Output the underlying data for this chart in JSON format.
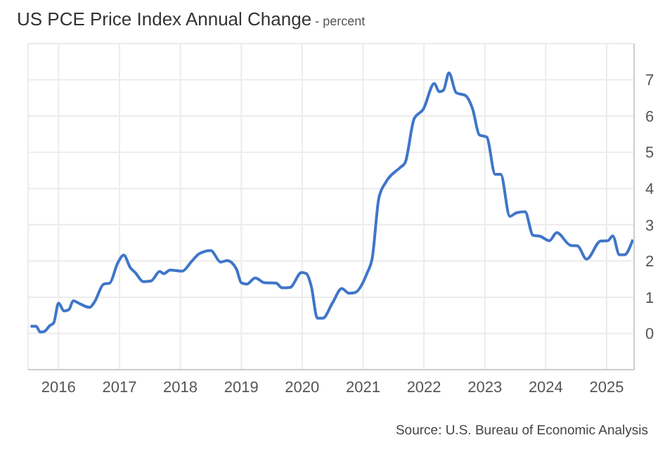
{
  "chart_data": {
    "type": "line",
    "title": "US PCE Price Index Annual Change",
    "subtitle": "- percent",
    "annotations": [
      "Source: U.S. Bureau of Economic Analysis"
    ],
    "x": [
      2015.54,
      2015.63,
      2015.7,
      2015.76,
      2015.86,
      2015.92,
      2016.0,
      2016.09,
      2016.17,
      2016.24,
      2016.36,
      2016.51,
      2016.59,
      2016.74,
      2016.84,
      2016.97,
      2017.07,
      2017.18,
      2017.26,
      2017.39,
      2017.52,
      2017.66,
      2017.73,
      2017.83,
      2018.03,
      2018.19,
      2018.31,
      2018.5,
      2018.66,
      2018.77,
      2018.92,
      2019.0,
      2019.09,
      2019.23,
      2019.38,
      2019.57,
      2019.67,
      2019.8,
      2019.99,
      2020.07,
      2020.15,
      2020.25,
      2020.34,
      2020.5,
      2020.65,
      2020.77,
      2020.87,
      2021.07,
      2021.15,
      2021.26,
      2021.38,
      2021.61,
      2021.69,
      2021.84,
      2021.99,
      2022.17,
      2022.25,
      2022.32,
      2022.41,
      2022.53,
      2022.68,
      2022.8,
      2022.91,
      2023.03,
      2023.17,
      2023.26,
      2023.41,
      2023.52,
      2023.66,
      2023.79,
      2023.91,
      2024.06,
      2024.18,
      2024.41,
      2024.52,
      2024.67,
      2024.9,
      2025.02,
      2025.1,
      2025.21,
      2025.29,
      2025.43
    ],
    "series": [
      {
        "color": "#3f76c8",
        "values": [
          0.2,
          0.2,
          0.04,
          0.05,
          0.22,
          0.29,
          0.84,
          0.62,
          0.66,
          0.9,
          0.81,
          0.72,
          0.87,
          1.36,
          1.39,
          1.94,
          2.16,
          1.81,
          1.68,
          1.43,
          1.45,
          1.71,
          1.65,
          1.75,
          1.72,
          2.0,
          2.2,
          2.29,
          1.97,
          2.01,
          1.78,
          1.4,
          1.36,
          1.53,
          1.4,
          1.39,
          1.26,
          1.27,
          1.68,
          1.65,
          1.3,
          0.42,
          0.42,
          0.85,
          1.24,
          1.11,
          1.13,
          1.68,
          2.07,
          3.74,
          4.19,
          4.58,
          4.71,
          5.93,
          6.19,
          6.9,
          6.67,
          6.71,
          7.19,
          6.64,
          6.57,
          6.19,
          5.48,
          5.42,
          4.39,
          4.39,
          3.23,
          3.33,
          3.36,
          2.71,
          2.68,
          2.56,
          2.78,
          2.43,
          2.42,
          2.05,
          2.55,
          2.56,
          2.69,
          2.17,
          2.17,
          2.59
        ]
      }
    ],
    "xlim": [
      2015.5,
      2025.45
    ],
    "xticks": [
      2016,
      2017,
      2018,
      2019,
      2020,
      2021,
      2022,
      2023,
      2024,
      2025
    ],
    "ylim": [
      -1,
      8
    ],
    "yticks": [
      0,
      1,
      2,
      3,
      4,
      5,
      6,
      7
    ],
    "grid": true,
    "marker": "none",
    "line_style": "solid"
  }
}
